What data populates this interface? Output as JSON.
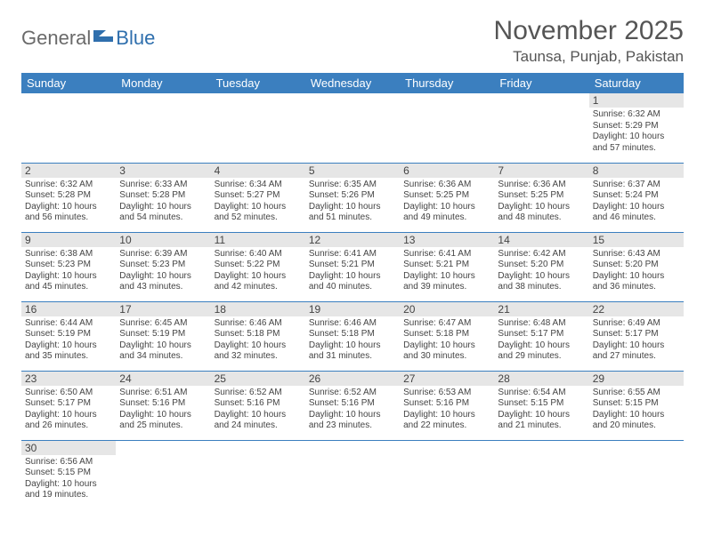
{
  "logo": {
    "text1": "General",
    "text2": "Blue"
  },
  "title": "November 2025",
  "location": "Taunsa, Punjab, Pakistan",
  "colors": {
    "header_bg": "#3b7fbf",
    "header_text": "#ffffff",
    "daynum_bg": "#e6e6e6",
    "cell_border": "#3b7fbf",
    "logo_gray": "#6a6a6a",
    "logo_blue": "#2f6fad"
  },
  "weekdays": [
    "Sunday",
    "Monday",
    "Tuesday",
    "Wednesday",
    "Thursday",
    "Friday",
    "Saturday"
  ],
  "weeks": [
    [
      null,
      null,
      null,
      null,
      null,
      null,
      {
        "n": "1",
        "sr": "6:32 AM",
        "ss": "5:29 PM",
        "dl": "10 hours and 57 minutes."
      }
    ],
    [
      {
        "n": "2",
        "sr": "6:32 AM",
        "ss": "5:28 PM",
        "dl": "10 hours and 56 minutes."
      },
      {
        "n": "3",
        "sr": "6:33 AM",
        "ss": "5:28 PM",
        "dl": "10 hours and 54 minutes."
      },
      {
        "n": "4",
        "sr": "6:34 AM",
        "ss": "5:27 PM",
        "dl": "10 hours and 52 minutes."
      },
      {
        "n": "5",
        "sr": "6:35 AM",
        "ss": "5:26 PM",
        "dl": "10 hours and 51 minutes."
      },
      {
        "n": "6",
        "sr": "6:36 AM",
        "ss": "5:25 PM",
        "dl": "10 hours and 49 minutes."
      },
      {
        "n": "7",
        "sr": "6:36 AM",
        "ss": "5:25 PM",
        "dl": "10 hours and 48 minutes."
      },
      {
        "n": "8",
        "sr": "6:37 AM",
        "ss": "5:24 PM",
        "dl": "10 hours and 46 minutes."
      }
    ],
    [
      {
        "n": "9",
        "sr": "6:38 AM",
        "ss": "5:23 PM",
        "dl": "10 hours and 45 minutes."
      },
      {
        "n": "10",
        "sr": "6:39 AM",
        "ss": "5:23 PM",
        "dl": "10 hours and 43 minutes."
      },
      {
        "n": "11",
        "sr": "6:40 AM",
        "ss": "5:22 PM",
        "dl": "10 hours and 42 minutes."
      },
      {
        "n": "12",
        "sr": "6:41 AM",
        "ss": "5:21 PM",
        "dl": "10 hours and 40 minutes."
      },
      {
        "n": "13",
        "sr": "6:41 AM",
        "ss": "5:21 PM",
        "dl": "10 hours and 39 minutes."
      },
      {
        "n": "14",
        "sr": "6:42 AM",
        "ss": "5:20 PM",
        "dl": "10 hours and 38 minutes."
      },
      {
        "n": "15",
        "sr": "6:43 AM",
        "ss": "5:20 PM",
        "dl": "10 hours and 36 minutes."
      }
    ],
    [
      {
        "n": "16",
        "sr": "6:44 AM",
        "ss": "5:19 PM",
        "dl": "10 hours and 35 minutes."
      },
      {
        "n": "17",
        "sr": "6:45 AM",
        "ss": "5:19 PM",
        "dl": "10 hours and 34 minutes."
      },
      {
        "n": "18",
        "sr": "6:46 AM",
        "ss": "5:18 PM",
        "dl": "10 hours and 32 minutes."
      },
      {
        "n": "19",
        "sr": "6:46 AM",
        "ss": "5:18 PM",
        "dl": "10 hours and 31 minutes."
      },
      {
        "n": "20",
        "sr": "6:47 AM",
        "ss": "5:18 PM",
        "dl": "10 hours and 30 minutes."
      },
      {
        "n": "21",
        "sr": "6:48 AM",
        "ss": "5:17 PM",
        "dl": "10 hours and 29 minutes."
      },
      {
        "n": "22",
        "sr": "6:49 AM",
        "ss": "5:17 PM",
        "dl": "10 hours and 27 minutes."
      }
    ],
    [
      {
        "n": "23",
        "sr": "6:50 AM",
        "ss": "5:17 PM",
        "dl": "10 hours and 26 minutes."
      },
      {
        "n": "24",
        "sr": "6:51 AM",
        "ss": "5:16 PM",
        "dl": "10 hours and 25 minutes."
      },
      {
        "n": "25",
        "sr": "6:52 AM",
        "ss": "5:16 PM",
        "dl": "10 hours and 24 minutes."
      },
      {
        "n": "26",
        "sr": "6:52 AM",
        "ss": "5:16 PM",
        "dl": "10 hours and 23 minutes."
      },
      {
        "n": "27",
        "sr": "6:53 AM",
        "ss": "5:16 PM",
        "dl": "10 hours and 22 minutes."
      },
      {
        "n": "28",
        "sr": "6:54 AM",
        "ss": "5:15 PM",
        "dl": "10 hours and 21 minutes."
      },
      {
        "n": "29",
        "sr": "6:55 AM",
        "ss": "5:15 PM",
        "dl": "10 hours and 20 minutes."
      }
    ],
    [
      {
        "n": "30",
        "sr": "6:56 AM",
        "ss": "5:15 PM",
        "dl": "10 hours and 19 minutes."
      },
      null,
      null,
      null,
      null,
      null,
      null
    ]
  ],
  "labels": {
    "sunrise": "Sunrise:",
    "sunset": "Sunset:",
    "daylight": "Daylight:"
  }
}
